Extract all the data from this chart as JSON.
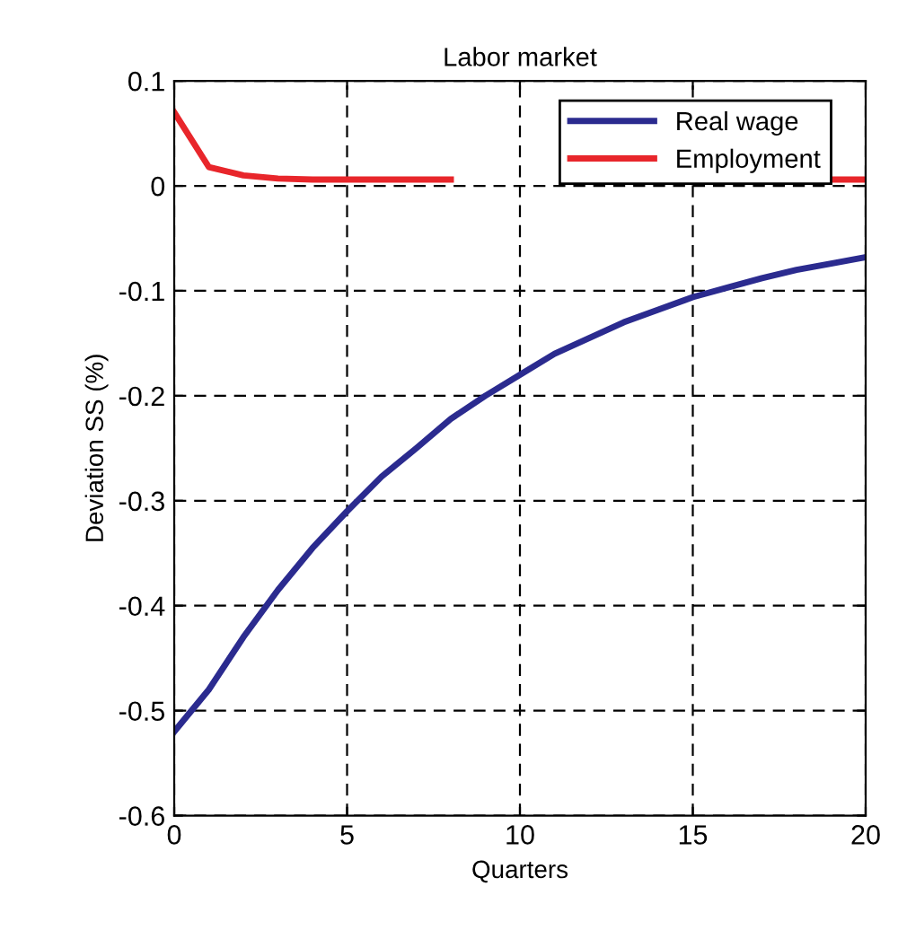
{
  "chart_data": {
    "type": "line",
    "title": "Labor market",
    "xlabel": "Quarters",
    "ylabel": "Deviation SS (%)",
    "x": [
      0,
      1,
      2,
      3,
      4,
      5,
      6,
      7,
      8,
      9,
      10,
      11,
      12,
      13,
      14,
      15,
      16,
      17,
      18,
      19,
      20
    ],
    "series": [
      {
        "name": "Real wage",
        "color": "#2b2b8f",
        "values": [
          -0.52,
          -0.48,
          -0.43,
          -0.385,
          -0.345,
          -0.31,
          -0.277,
          -0.25,
          -0.222,
          -0.2,
          -0.18,
          -0.16,
          -0.145,
          -0.13,
          -0.118,
          -0.106,
          -0.097,
          -0.088,
          -0.08,
          -0.074,
          -0.068
        ]
      },
      {
        "name": "Employment",
        "color": "#e8262b",
        "values": [
          0.07,
          0.018,
          0.01,
          0.007,
          0.006,
          0.006,
          0.006,
          0.006,
          0.006,
          null,
          null,
          null,
          null,
          null,
          null,
          null,
          null,
          null,
          null,
          0.006,
          0.006
        ]
      }
    ],
    "xlim": [
      0,
      20
    ],
    "xticks": [
      0,
      5,
      10,
      15,
      20
    ],
    "ylim": [
      -0.6,
      0.1
    ],
    "yticks": [
      -0.6,
      -0.5,
      -0.4,
      -0.3,
      -0.2,
      -0.1,
      0,
      0.1
    ],
    "grid": true,
    "legend": "top right",
    "line_style": "solid"
  }
}
